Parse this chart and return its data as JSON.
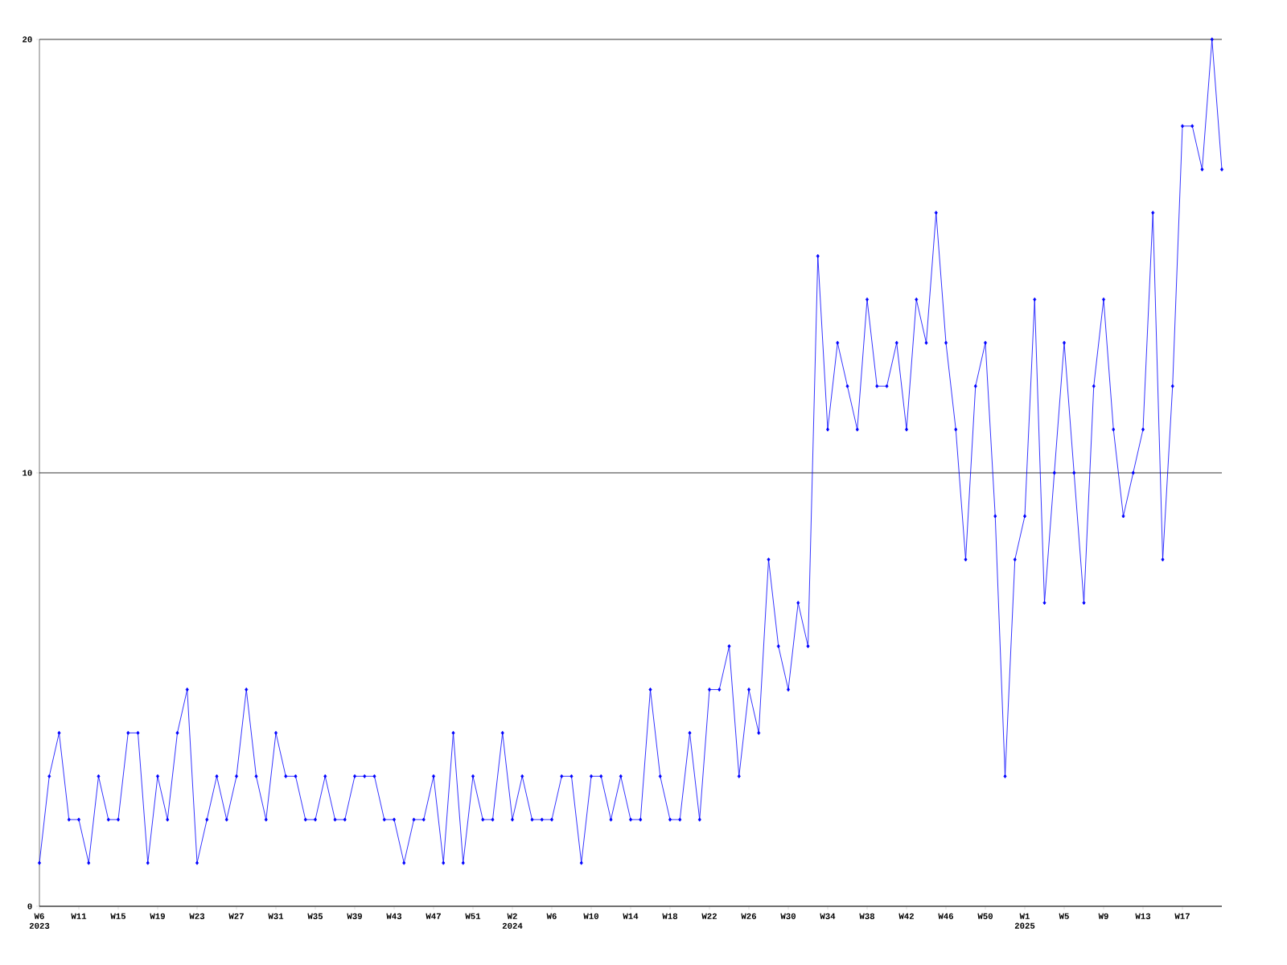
{
  "chart_data": {
    "type": "line",
    "color": "#0000ff",
    "marker": "diamond",
    "grid": "y",
    "categories": [
      "W6 2023",
      null,
      null,
      null,
      "W11",
      null,
      null,
      null,
      "W15",
      null,
      null,
      null,
      "W19",
      null,
      null,
      null,
      "W23",
      null,
      null,
      null,
      "W27",
      null,
      null,
      null,
      "W31",
      null,
      null,
      null,
      "W35",
      null,
      null,
      null,
      "W39",
      null,
      null,
      null,
      "W43",
      null,
      null,
      null,
      "W47",
      null,
      null,
      null,
      "W51",
      null,
      null,
      null,
      "W2 2024",
      null,
      null,
      null,
      "W6",
      null,
      null,
      null,
      "W10",
      null,
      null,
      null,
      "W14",
      null,
      null,
      null,
      "W18",
      null,
      null,
      null,
      "W22",
      null,
      null,
      null,
      "W26",
      null,
      null,
      null,
      "W30",
      null,
      null,
      null,
      "W34",
      null,
      null,
      null,
      "W38",
      null,
      null,
      null,
      "W42",
      null,
      null,
      null,
      "W46",
      null,
      null,
      null,
      "W50",
      null,
      null,
      null,
      "W1 2025",
      null,
      null,
      null,
      "W5",
      null,
      null,
      null,
      "W9",
      null,
      null,
      null,
      "W13",
      null,
      null,
      null,
      "W17",
      null,
      null,
      null,
      null
    ],
    "values": [
      1,
      3,
      4,
      2,
      2,
      1,
      3,
      2,
      2,
      4,
      4,
      1,
      3,
      2,
      4,
      5,
      1,
      2,
      3,
      2,
      3,
      5,
      3,
      2,
      4,
      3,
      3,
      2,
      2,
      3,
      2,
      2,
      3,
      3,
      3,
      2,
      2,
      1,
      2,
      2,
      3,
      1,
      4,
      1,
      3,
      2,
      2,
      4,
      2,
      3,
      2,
      2,
      2,
      3,
      3,
      1,
      3,
      3,
      2,
      3,
      2,
      2,
      5,
      3,
      2,
      2,
      4,
      2,
      5,
      5,
      6,
      3,
      5,
      4,
      8,
      6,
      5,
      7,
      6,
      15,
      11,
      13,
      12,
      11,
      14,
      12,
      12,
      13,
      11,
      14,
      13,
      16,
      13,
      11,
      8,
      12,
      13,
      9,
      3,
      8,
      9,
      14,
      7,
      10,
      13,
      10,
      7,
      12,
      14,
      11,
      9,
      10,
      11,
      16,
      8,
      12,
      18,
      18,
      17,
      20,
      17
    ],
    "ylim": [
      0,
      20
    ],
    "yticks": [
      0,
      10,
      20
    ]
  }
}
